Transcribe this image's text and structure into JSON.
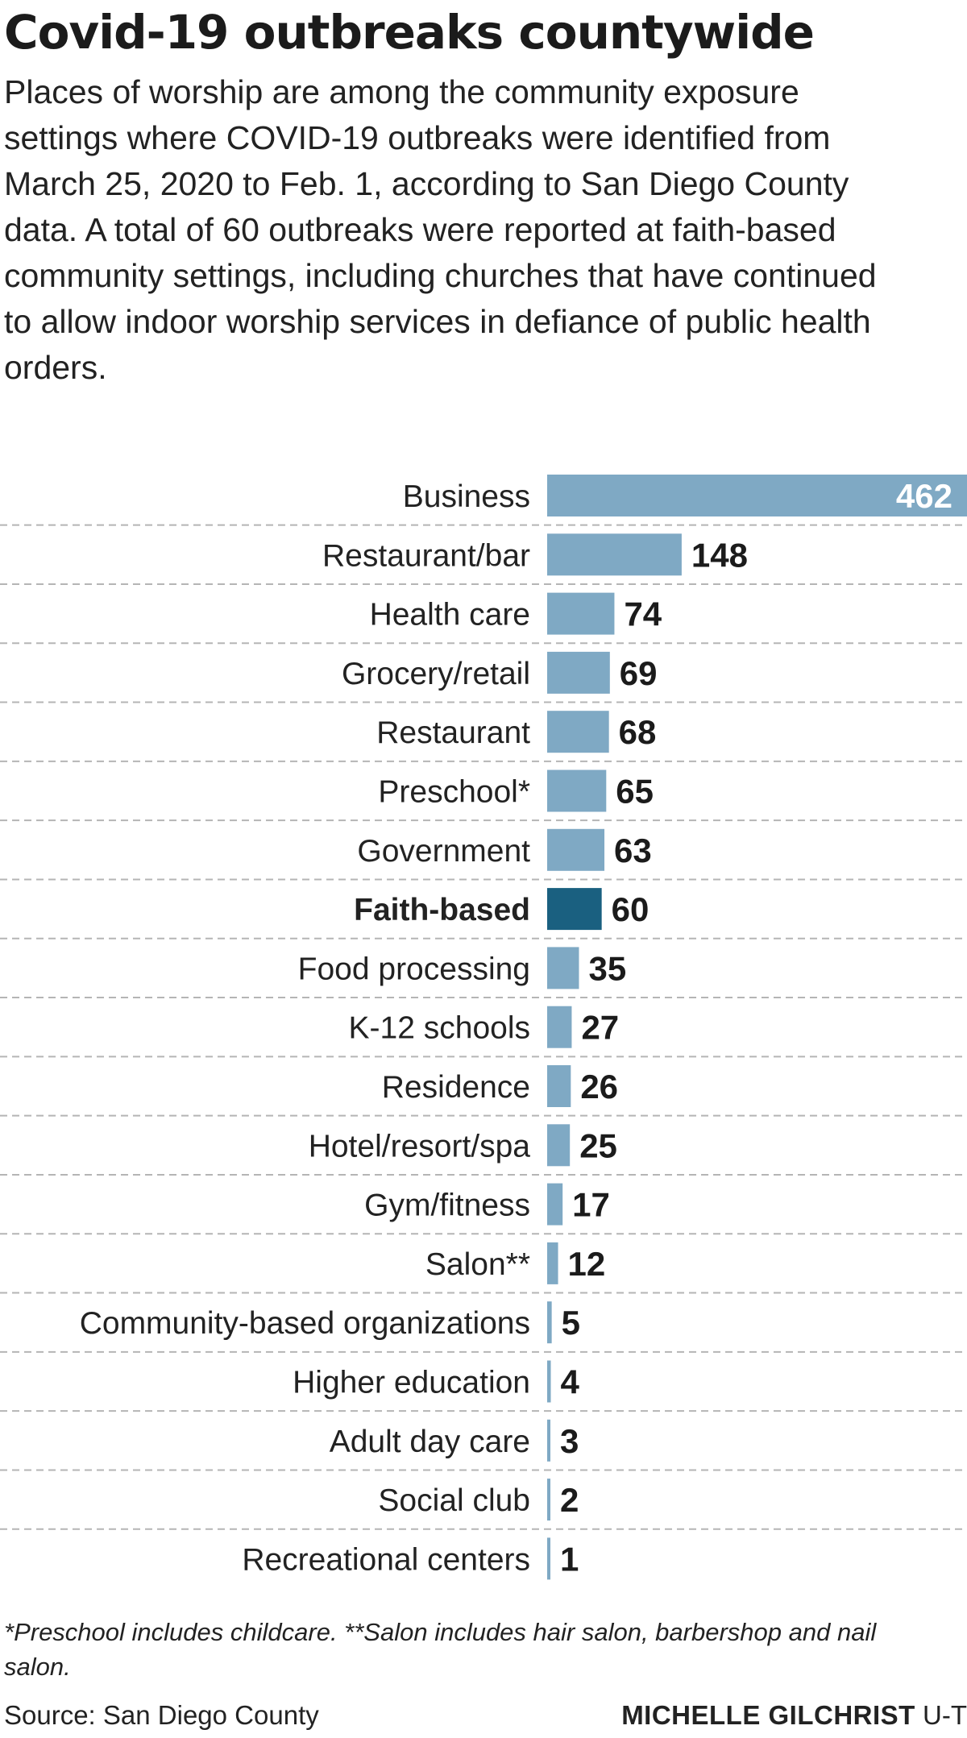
{
  "title": "Covid-19 outbreaks countywide",
  "subtitle": "Places of worship are among the community exposure settings where COVID-19 outbreaks were identified from March 25, 2020 to Feb. 1, according to San Diego County data. A total of 60 outbreaks were reported at faith-based community settings, including churches that have continued to allow indoor worship services in defiance of public health orders.",
  "footnote": "*Preschool includes childcare. **Salon includes hair salon, barbershop and nail salon.",
  "source": "Source: San Diego County",
  "credit": {
    "name": "MICHELLE GILCHRIST",
    "org": "U-T"
  },
  "colors": {
    "bar": "#7fa9c4",
    "highlight": "#1a6080",
    "value_inside": "#ffffff",
    "value_outside": "#1b1b1b",
    "gridline": "#b5b5b5"
  },
  "chart_data": {
    "type": "bar",
    "orientation": "horizontal",
    "highlight": "Faith-based",
    "categories": [
      "Business",
      "Restaurant/bar",
      "Health care",
      "Grocery/retail",
      "Restaurant",
      "Preschool*",
      "Government",
      "Faith-based",
      "Food processing",
      "K-12 schools",
      "Residence",
      "Hotel/resort/spa",
      "Gym/fitness",
      "Salon**",
      "Community-based organizations",
      "Higher education",
      "Adult day care",
      "Social club",
      "Recreational centers"
    ],
    "values": [
      462,
      148,
      74,
      69,
      68,
      65,
      63,
      60,
      35,
      27,
      26,
      25,
      17,
      12,
      5,
      4,
      3,
      2,
      1
    ],
    "xlim": [
      0,
      462
    ],
    "grid": true
  }
}
